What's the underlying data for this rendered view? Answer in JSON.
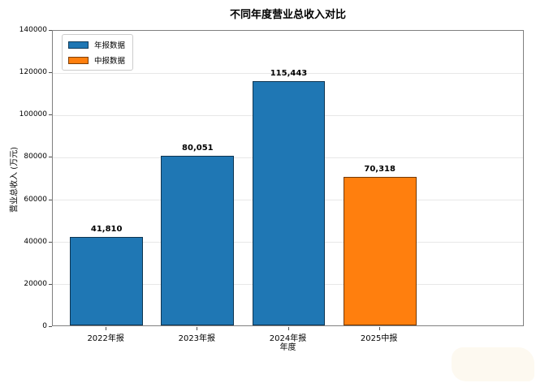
{
  "chart_data": {
    "type": "bar",
    "title": "不同年度营业总收入对比",
    "xlabel": "年度",
    "ylabel": "营业总收入 (万元)",
    "categories": [
      "2022年报",
      "2023年报",
      "2024年报",
      "2025中报"
    ],
    "values": [
      41810,
      80051,
      115443,
      70318
    ],
    "value_labels": [
      "41,810",
      "80,051",
      "115,443",
      "70,318"
    ],
    "bar_colors": [
      "#1f77b4",
      "#1f77b4",
      "#1f77b4",
      "#ff7f0e"
    ],
    "bar_edge_color": "rgba(0,0,0,0.55)",
    "ylim": [
      0,
      140000
    ],
    "yticks": [
      0,
      20000,
      40000,
      60000,
      80000,
      100000,
      120000,
      140000
    ],
    "ytick_labels": [
      "0",
      "20000",
      "40000",
      "60000",
      "80000",
      "100000",
      "120000",
      "140000"
    ],
    "grid": true,
    "grid_color": "#e7e7e7",
    "legend": {
      "position": "upper left",
      "items": [
        {
          "label": "年报数据",
          "color": "#1f77b4"
        },
        {
          "label": "中报数据",
          "color": "#ff7f0e"
        }
      ]
    }
  }
}
